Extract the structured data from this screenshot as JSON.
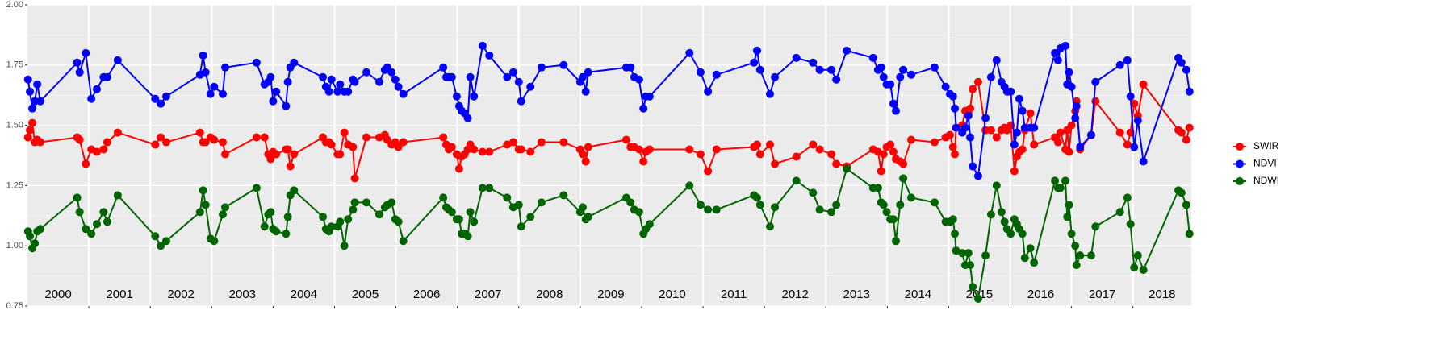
{
  "chart_data": {
    "type": "line",
    "x": [
      2000.01,
      2000.04,
      2000.08,
      2000.12,
      2000.16,
      2000.21,
      2000.81,
      2000.85,
      2000.95,
      2001.04,
      2001.13,
      2001.24,
      2001.3,
      2001.47,
      2002.08,
      2002.17,
      2002.26,
      2002.81,
      2002.86,
      2002.9,
      2002.98,
      2003.04,
      2003.18,
      2003.22,
      2003.73,
      2003.86,
      2003.92,
      2003.96,
      2004.0,
      2004.05,
      2004.21,
      2004.24,
      2004.28,
      2004.34,
      2004.81,
      2004.86,
      2004.91,
      2004.95,
      2005.05,
      2005.09,
      2005.16,
      2005.22,
      2005.3,
      2005.33,
      2005.52,
      2005.73,
      2005.82,
      2005.86,
      2005.93,
      2005.99,
      2006.04,
      2006.12,
      2006.77,
      2006.82,
      2006.86,
      2006.91,
      2006.99,
      2007.03,
      2007.07,
      2007.12,
      2007.17,
      2007.21,
      2007.27,
      2007.41,
      2007.52,
      2007.81,
      2007.91,
      2008.0,
      2008.04,
      2008.19,
      2008.37,
      2008.73,
      2009.0,
      2009.04,
      2009.09,
      2009.13,
      2009.75,
      2009.82,
      2009.88,
      2009.96,
      2010.03,
      2010.07,
      2010.13,
      2010.78,
      2010.96,
      2011.08,
      2011.22,
      2011.83,
      2011.88,
      2011.93,
      2012.09,
      2012.17,
      2012.52,
      2012.79,
      2012.9,
      2013.09,
      2013.17,
      2013.34,
      2013.77,
      2013.85,
      2013.9,
      2013.94,
      2013.99,
      2014.05,
      2014.1,
      2014.14,
      2014.21,
      2014.26,
      2014.39,
      2014.77,
      2014.95,
      2015.02,
      2015.07,
      2015.1,
      2015.12,
      2015.22,
      2015.27,
      2015.32,
      2015.35,
      2015.39,
      2015.48,
      2015.6,
      2015.69,
      2015.78,
      2015.86,
      2015.91,
      2015.95,
      2016.01,
      2016.07,
      2016.11,
      2016.15,
      2016.2,
      2016.24,
      2016.33,
      2016.39,
      2016.73,
      2016.78,
      2016.82,
      2016.9,
      2016.93,
      2016.96,
      2017.0,
      2017.06,
      2017.08,
      2017.14,
      2017.32,
      2017.39,
      2017.79,
      2017.91,
      2017.96,
      2018.02,
      2018.08,
      2018.17,
      2018.74,
      2018.79,
      2018.87,
      2018.92
    ],
    "series": [
      {
        "name": "SWIR",
        "color": "#ff0000",
        "values": [
          1.45,
          1.48,
          1.51,
          1.43,
          1.44,
          1.43,
          1.45,
          1.44,
          1.34,
          1.4,
          1.39,
          1.4,
          1.43,
          1.47,
          1.42,
          1.45,
          1.43,
          1.47,
          1.43,
          1.43,
          1.45,
          1.44,
          1.43,
          1.38,
          1.45,
          1.45,
          1.38,
          1.36,
          1.39,
          1.38,
          1.4,
          1.4,
          1.33,
          1.38,
          1.45,
          1.43,
          1.43,
          1.42,
          1.38,
          1.38,
          1.47,
          1.42,
          1.41,
          1.28,
          1.45,
          1.45,
          1.46,
          1.44,
          1.42,
          1.43,
          1.41,
          1.43,
          1.45,
          1.42,
          1.4,
          1.41,
          1.38,
          1.32,
          1.37,
          1.38,
          1.4,
          1.42,
          1.4,
          1.39,
          1.39,
          1.42,
          1.43,
          1.4,
          1.4,
          1.39,
          1.43,
          1.43,
          1.4,
          1.38,
          1.35,
          1.41,
          1.44,
          1.41,
          1.41,
          1.4,
          1.35,
          1.39,
          1.4,
          1.4,
          1.38,
          1.31,
          1.4,
          1.41,
          1.42,
          1.38,
          1.42,
          1.34,
          1.37,
          1.42,
          1.4,
          1.38,
          1.34,
          1.33,
          1.4,
          1.39,
          1.31,
          1.38,
          1.41,
          1.42,
          1.39,
          1.36,
          1.35,
          1.34,
          1.44,
          1.43,
          1.45,
          1.46,
          1.41,
          1.38,
          1.49,
          1.5,
          1.56,
          1.55,
          1.57,
          1.65,
          1.68,
          1.48,
          1.48,
          1.45,
          1.48,
          1.49,
          1.48,
          1.5,
          1.31,
          1.37,
          1.39,
          1.4,
          1.48,
          1.55,
          1.42,
          1.45,
          1.43,
          1.47,
          1.4,
          1.48,
          1.39,
          1.5,
          1.56,
          1.6,
          1.4,
          1.46,
          1.6,
          1.47,
          1.42,
          1.47,
          1.59,
          1.54,
          1.67,
          1.48,
          1.47,
          1.44,
          1.49
        ]
      },
      {
        "name": "NDVI",
        "color": "#0000ff",
        "values": [
          1.69,
          1.64,
          1.57,
          1.6,
          1.67,
          1.6,
          1.76,
          1.72,
          1.8,
          1.61,
          1.65,
          1.7,
          1.7,
          1.77,
          1.61,
          1.59,
          1.62,
          1.71,
          1.79,
          1.72,
          1.63,
          1.66,
          1.63,
          1.74,
          1.76,
          1.67,
          1.68,
          1.7,
          1.6,
          1.64,
          1.58,
          1.68,
          1.74,
          1.76,
          1.7,
          1.66,
          1.64,
          1.69,
          1.64,
          1.67,
          1.64,
          1.64,
          1.69,
          1.68,
          1.72,
          1.68,
          1.73,
          1.74,
          1.72,
          1.69,
          1.66,
          1.63,
          1.74,
          1.7,
          1.7,
          1.7,
          1.62,
          1.58,
          1.56,
          1.55,
          1.53,
          1.7,
          1.62,
          1.83,
          1.79,
          1.7,
          1.72,
          1.68,
          1.6,
          1.66,
          1.74,
          1.75,
          1.68,
          1.7,
          1.64,
          1.72,
          1.74,
          1.74,
          1.7,
          1.69,
          1.57,
          1.62,
          1.62,
          1.8,
          1.72,
          1.64,
          1.71,
          1.76,
          1.81,
          1.73,
          1.63,
          1.7,
          1.78,
          1.76,
          1.73,
          1.73,
          1.69,
          1.81,
          1.78,
          1.73,
          1.74,
          1.7,
          1.67,
          1.67,
          1.59,
          1.56,
          1.7,
          1.73,
          1.71,
          1.74,
          1.66,
          1.63,
          1.62,
          1.57,
          1.49,
          1.47,
          1.49,
          1.54,
          1.45,
          1.33,
          1.29,
          1.53,
          1.7,
          1.77,
          1.68,
          1.66,
          1.64,
          1.64,
          1.42,
          1.47,
          1.61,
          1.56,
          1.49,
          1.49,
          1.49,
          1.8,
          1.77,
          1.82,
          1.83,
          1.67,
          1.72,
          1.66,
          1.53,
          1.58,
          1.41,
          1.46,
          1.68,
          1.75,
          1.77,
          1.62,
          1.41,
          1.52,
          1.35,
          1.78,
          1.76,
          1.73,
          1.64
        ]
      },
      {
        "name": "NDWI",
        "color": "#006400",
        "values": [
          1.06,
          1.04,
          0.99,
          1.01,
          1.06,
          1.07,
          1.2,
          1.14,
          1.07,
          1.05,
          1.09,
          1.14,
          1.1,
          1.21,
          1.04,
          1.0,
          1.02,
          1.14,
          1.23,
          1.17,
          1.03,
          1.02,
          1.13,
          1.16,
          1.24,
          1.08,
          1.13,
          1.14,
          1.07,
          1.06,
          1.05,
          1.12,
          1.21,
          1.23,
          1.12,
          1.07,
          1.06,
          1.08,
          1.08,
          1.1,
          1.0,
          1.11,
          1.15,
          1.18,
          1.18,
          1.13,
          1.16,
          1.17,
          1.18,
          1.11,
          1.1,
          1.02,
          1.2,
          1.16,
          1.15,
          1.14,
          1.11,
          1.11,
          1.05,
          1.05,
          1.04,
          1.14,
          1.1,
          1.24,
          1.24,
          1.2,
          1.16,
          1.17,
          1.08,
          1.12,
          1.18,
          1.21,
          1.14,
          1.16,
          1.11,
          1.12,
          1.2,
          1.18,
          1.15,
          1.14,
          1.05,
          1.07,
          1.09,
          1.25,
          1.17,
          1.15,
          1.15,
          1.21,
          1.2,
          1.17,
          1.08,
          1.16,
          1.27,
          1.22,
          1.15,
          1.14,
          1.17,
          1.32,
          1.24,
          1.24,
          1.18,
          1.17,
          1.14,
          1.11,
          1.11,
          1.02,
          1.17,
          1.28,
          1.2,
          1.18,
          1.1,
          1.1,
          1.11,
          1.05,
          0.98,
          0.97,
          0.92,
          0.97,
          0.92,
          0.83,
          0.78,
          0.96,
          1.13,
          1.25,
          1.14,
          1.1,
          1.07,
          1.05,
          1.11,
          1.09,
          1.07,
          1.05,
          0.95,
          0.99,
          0.93,
          1.27,
          1.24,
          1.24,
          1.27,
          1.12,
          1.17,
          1.05,
          1.0,
          0.92,
          0.96,
          0.96,
          1.08,
          1.14,
          1.2,
          1.09,
          0.91,
          0.96,
          0.9,
          1.23,
          1.22,
          1.17,
          1.05
        ]
      }
    ],
    "annotations": [
      "2000",
      "2001",
      "2002",
      "2003",
      "2004",
      "2005",
      "2006",
      "2007",
      "2008",
      "2009",
      "2010",
      "2011",
      "2012",
      "2013",
      "2014",
      "2015",
      "2016",
      "2017",
      "2018"
    ],
    "xlim": [
      2000,
      2018.95
    ],
    "xticks": [
      2001,
      2002,
      2003,
      2004,
      2005,
      2006,
      2007,
      2008,
      2009,
      2010,
      2011,
      2012,
      2013,
      2014,
      2015,
      2016,
      2017,
      2018
    ],
    "ylim": [
      0.75,
      2.0
    ],
    "yticks": [
      0.75,
      {
        "value": 1,
        "label": "1.00"
      },
      1.25,
      {
        "value": 1.5,
        "label": "1.50"
      },
      1.75,
      {
        "value": 2,
        "label": "2.00"
      }
    ],
    "yminorticks": [
      0.875,
      1.125,
      1.375,
      1.625,
      1.875
    ],
    "grid": true,
    "legend": "right"
  }
}
